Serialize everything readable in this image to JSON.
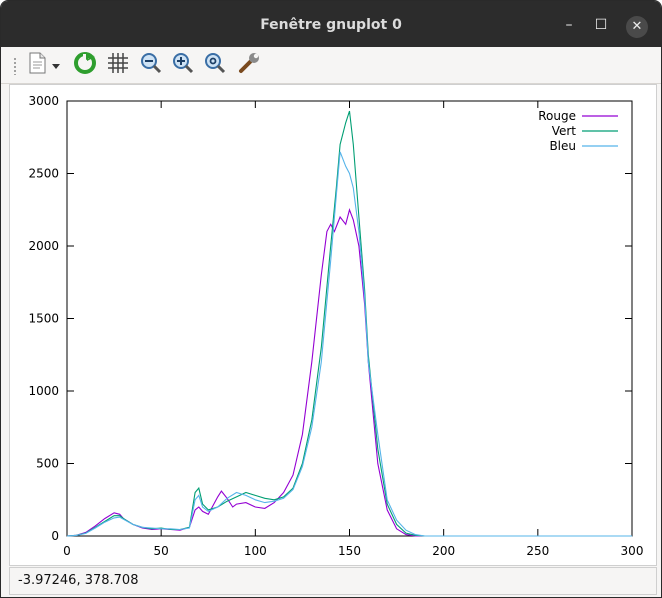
{
  "window": {
    "title": "Fenêtre gnuplot 0",
    "buttons": {
      "minimize": "–",
      "maximize": "☐",
      "close": "✕"
    }
  },
  "toolbar": {
    "icons": [
      "copy-to-clipboard-icon",
      "dropdown-arrow-icon",
      "replot-icon",
      "grid-icon",
      "zoom-previous-icon",
      "zoom-next-icon",
      "unzoom-icon",
      "options-wrench-icon"
    ]
  },
  "status": {
    "coords": "-3.97246,  378.708"
  },
  "chart_data": {
    "type": "line",
    "title": "",
    "xlabel": "",
    "ylabel": "",
    "xlim": [
      0,
      300
    ],
    "ylim": [
      0,
      3000
    ],
    "xticks": [
      0,
      50,
      100,
      150,
      200,
      250,
      300
    ],
    "yticks": [
      0,
      500,
      1000,
      1500,
      2000,
      2500,
      3000
    ],
    "grid": false,
    "legend": "top-right",
    "series": [
      {
        "name": "Rouge",
        "color": "#9400d3",
        "x": [
          0,
          5,
          10,
          15,
          20,
          25,
          28,
          30,
          35,
          40,
          45,
          50,
          55,
          60,
          65,
          68,
          70,
          72,
          75,
          80,
          82,
          85,
          88,
          90,
          95,
          100,
          105,
          110,
          115,
          120,
          125,
          130,
          135,
          138,
          140,
          142,
          145,
          148,
          150,
          152,
          155,
          158,
          160,
          165,
          170,
          175,
          180,
          185,
          190,
          200,
          250,
          300
        ],
        "y": [
          0,
          5,
          25,
          70,
          120,
          160,
          150,
          120,
          80,
          55,
          45,
          50,
          45,
          40,
          60,
          180,
          200,
          170,
          150,
          270,
          310,
          260,
          200,
          220,
          230,
          200,
          190,
          230,
          300,
          420,
          700,
          1200,
          1800,
          2100,
          2150,
          2100,
          2200,
          2150,
          2250,
          2180,
          2000,
          1600,
          1200,
          500,
          180,
          50,
          10,
          0,
          0,
          0,
          0,
          0
        ]
      },
      {
        "name": "Vert",
        "color": "#009e73",
        "x": [
          0,
          5,
          10,
          15,
          20,
          25,
          28,
          30,
          35,
          40,
          45,
          50,
          55,
          60,
          65,
          68,
          70,
          72,
          75,
          80,
          85,
          90,
          95,
          100,
          105,
          110,
          115,
          120,
          125,
          130,
          135,
          140,
          143,
          145,
          148,
          150,
          152,
          155,
          158,
          160,
          165,
          170,
          175,
          180,
          185,
          190,
          200,
          250,
          300
        ],
        "y": [
          0,
          5,
          20,
          60,
          100,
          140,
          140,
          120,
          80,
          60,
          50,
          55,
          45,
          45,
          60,
          300,
          330,
          220,
          180,
          200,
          240,
          270,
          300,
          280,
          260,
          250,
          270,
          330,
          500,
          800,
          1300,
          2000,
          2400,
          2700,
          2850,
          2930,
          2700,
          2200,
          1700,
          1250,
          600,
          220,
          80,
          20,
          5,
          0,
          0,
          0,
          0
        ]
      },
      {
        "name": "Bleu",
        "color": "#56b4e9",
        "x": [
          0,
          5,
          10,
          15,
          20,
          25,
          28,
          30,
          35,
          40,
          45,
          50,
          55,
          60,
          65,
          68,
          70,
          72,
          75,
          80,
          85,
          90,
          95,
          100,
          105,
          110,
          115,
          120,
          125,
          130,
          135,
          140,
          143,
          145,
          148,
          150,
          152,
          155,
          158,
          160,
          165,
          170,
          175,
          180,
          185,
          190,
          200,
          250,
          300
        ],
        "y": [
          0,
          4,
          18,
          55,
          95,
          125,
          130,
          115,
          80,
          60,
          55,
          50,
          50,
          45,
          55,
          250,
          280,
          200,
          170,
          200,
          260,
          300,
          280,
          250,
          230,
          240,
          260,
          320,
          480,
          750,
          1200,
          1900,
          2350,
          2650,
          2550,
          2500,
          2400,
          2100,
          1650,
          1200,
          700,
          250,
          110,
          40,
          10,
          0,
          0,
          0,
          0
        ]
      }
    ]
  }
}
